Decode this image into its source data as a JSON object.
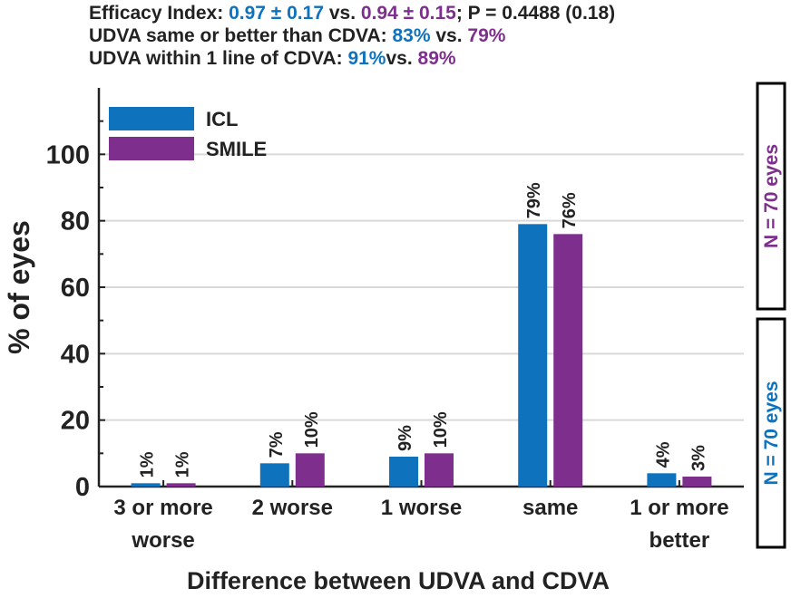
{
  "colors": {
    "icl": "#0E72BD",
    "smile": "#7E2F8E",
    "text": "#222222",
    "grid": "#D9D9D9"
  },
  "header": {
    "line1": {
      "label": "Efficacy Index: ",
      "icl": "0.97 ± 0.17",
      "sep": " vs. ",
      "smile": "0.94 ± 0.15",
      "tail": "; P = 0.4488 (0.18)"
    },
    "line2": {
      "label": "UDVA same or better than CDVA: ",
      "icl": "83%",
      "sep": " vs. ",
      "smile": "79%"
    },
    "line3": {
      "label": "UDVA within 1 line of CDVA: ",
      "icl": "91%",
      "sep": "vs. ",
      "smile": "89%"
    }
  },
  "side_boxes": {
    "smile": "N = 70 eyes",
    "icl": "N = 70 eyes"
  },
  "chart_data": {
    "type": "bar",
    "categories": [
      "3 or more worse",
      "2 worse",
      "1 worse",
      "same",
      "1 or more better"
    ],
    "category_lines": [
      [
        "3 or more",
        "worse"
      ],
      [
        "2 worse"
      ],
      [
        "1 worse"
      ],
      [
        "same"
      ],
      [
        "1 or more",
        "better"
      ]
    ],
    "series": [
      {
        "name": "ICL",
        "values": [
          1,
          7,
          9,
          79,
          4
        ],
        "labels": [
          "1%",
          "7%",
          "9%",
          "79%",
          "4%"
        ]
      },
      {
        "name": "SMILE",
        "values": [
          1,
          10,
          10,
          76,
          3
        ],
        "labels": [
          "1%",
          "10%",
          "10%",
          "76%",
          "3%"
        ]
      }
    ],
    "xlabel": "Difference between UDVA and CDVA",
    "ylabel": "% of eyes",
    "ylim": [
      0,
      120
    ],
    "yticks": [
      0,
      20,
      40,
      60,
      80,
      100
    ],
    "grid": true,
    "legend": "top-left"
  }
}
